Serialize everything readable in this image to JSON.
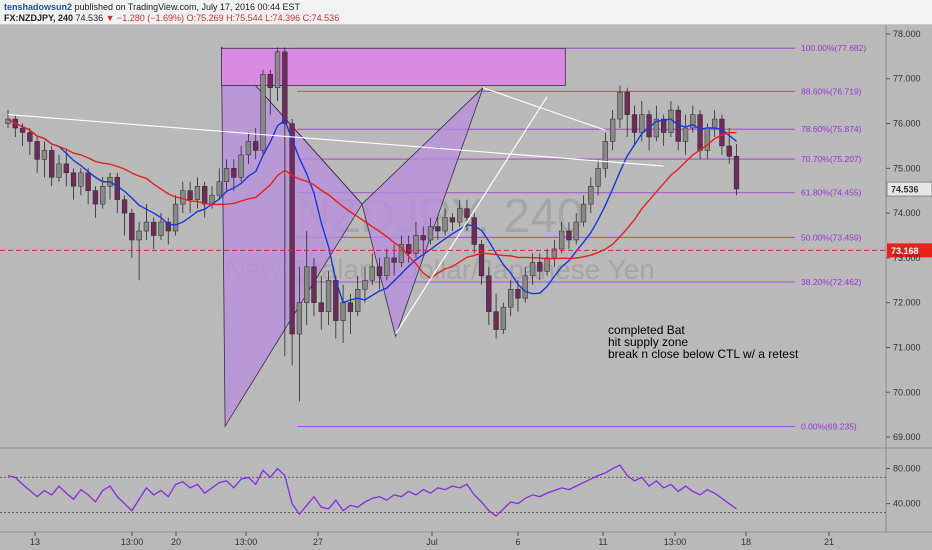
{
  "header": {
    "user": "tenshadowsun2",
    "published": "published on TradingView.com, July 17, 2016 00:44 EST",
    "symbol": "FX:NZDJPY, 240",
    "last": "74.536",
    "change": "▼ −1.280 (−1.69%)",
    "ohlc": "O:75.269  H:75.544  L:74.396  C:74.536"
  },
  "watermark": {
    "symbol": "NZDJPY, 240",
    "name": "New Zealand Dollar/Japanese Yen"
  },
  "colors": {
    "background": "#b9b9b9",
    "candle_up": "#888888",
    "candle_down": "#6e2b5a",
    "ma_fast": "#1a3ad8",
    "ma_slow": "#e8231c",
    "fib": "#9b35d8",
    "pattern_fill": "#b98ee0",
    "supply_zone": "#d78ae0",
    "trendline": "#ffffff",
    "rsi": "#8a2be2",
    "hline": "#e8231c"
  },
  "chart_data": [
    {
      "type": "candlestick",
      "title": "FX:NZDJPY, 240",
      "ylim": [
        68.8,
        78.2
      ],
      "y_ticks": [
        "78.000",
        "77.000",
        "76.000",
        "75.000",
        "74.000",
        "73.000",
        "72.000",
        "71.000",
        "70.000",
        "69.000"
      ],
      "x_tick_labels": [
        "13",
        "13:00",
        "20",
        "13:00",
        "27",
        "Jul",
        "6",
        "11",
        "13:00",
        "18",
        "21"
      ],
      "last_price": "74.536",
      "hline": {
        "value": 73.168,
        "label": "73.168",
        "style": "dashed"
      },
      "fib_levels": [
        {
          "label": "100.00%(77.682)",
          "value": 77.682
        },
        {
          "label": "88.60%(76.719)",
          "value": 76.719
        },
        {
          "label": "78.60%(75.874)",
          "value": 75.874
        },
        {
          "label": "70.70%(75.207)",
          "value": 75.207
        },
        {
          "label": "61.80%(74.455)",
          "value": 74.455
        },
        {
          "label": "50.00%(73.459)",
          "value": 73.459
        },
        {
          "label": "38.20%(72.462)",
          "value": 72.462
        },
        {
          "label": "0.00%(69.235)",
          "value": 69.235
        }
      ],
      "pattern": {
        "name": "Bat",
        "points": [
          {
            "t": 29.3,
            "price": 77.7
          },
          {
            "t": 29.8,
            "price": 69.24
          },
          {
            "t": 48.6,
            "price": 74.2
          },
          {
            "t": 53.2,
            "price": 71.25
          },
          {
            "t": 65.2,
            "price": 76.8
          }
        ]
      },
      "supply_zone": {
        "t0": 29.3,
        "t1": 76.5,
        "p0": 76.85,
        "p1": 77.68
      },
      "trendlines": [
        {
          "t0": 0,
          "p0": 76.2,
          "t1": 90,
          "p1": 75.05
        },
        {
          "t0": 65.2,
          "p0": 76.8,
          "t1": 82,
          "p1": 75.85
        },
        {
          "t0": 53.2,
          "p0": 71.3,
          "t1": 74,
          "p1": 76.6
        }
      ],
      "annotation": [
        "completed Bat",
        "hit supply zone",
        "break n close below CTL w/ a retest"
      ],
      "series": [
        {
          "name": "",
          "type": "ma",
          "period": 8
        },
        {
          "name": "",
          "type": "ma",
          "period": 20
        }
      ],
      "candles": [
        [
          76.0,
          76.1,
          76.3,
          75.9
        ],
        [
          76.1,
          75.9,
          76.2,
          75.7
        ],
        [
          75.9,
          75.8,
          76.0,
          75.5
        ],
        [
          75.8,
          75.6,
          75.9,
          75.3
        ],
        [
          75.6,
          75.2,
          75.7,
          74.9
        ],
        [
          75.2,
          75.4,
          75.6,
          74.8
        ],
        [
          75.4,
          74.8,
          75.5,
          74.6
        ],
        [
          74.8,
          75.1,
          75.3,
          74.7
        ],
        [
          75.1,
          74.9,
          75.4,
          74.6
        ],
        [
          74.9,
          74.6,
          75.0,
          74.3
        ],
        [
          74.6,
          74.9,
          75.0,
          74.4
        ],
        [
          74.9,
          74.5,
          75.0,
          74.2
        ],
        [
          74.5,
          74.2,
          74.6,
          73.9
        ],
        [
          74.2,
          74.6,
          74.8,
          74.1
        ],
        [
          74.6,
          74.8,
          74.9,
          74.3
        ],
        [
          74.8,
          74.3,
          74.9,
          74.0
        ],
        [
          74.3,
          74.0,
          74.4,
          73.5
        ],
        [
          74.0,
          73.4,
          74.1,
          73.0
        ],
        [
          73.4,
          73.6,
          73.8,
          72.5
        ],
        [
          73.6,
          73.8,
          74.2,
          73.4
        ],
        [
          73.8,
          73.5,
          73.9,
          73.2
        ],
        [
          73.5,
          73.8,
          74.0,
          73.4
        ],
        [
          73.8,
          73.6,
          73.9,
          73.3
        ],
        [
          73.6,
          74.2,
          74.4,
          73.5
        ],
        [
          74.2,
          74.5,
          74.7,
          74.0
        ],
        [
          74.5,
          74.3,
          74.7,
          74.0
        ],
        [
          74.3,
          74.6,
          74.8,
          74.1
        ],
        [
          74.6,
          74.2,
          74.7,
          73.9
        ],
        [
          74.2,
          74.4,
          74.6,
          74.1
        ],
        [
          74.4,
          74.7,
          75.0,
          74.3
        ],
        [
          74.7,
          75.0,
          75.2,
          74.5
        ],
        [
          75.0,
          74.8,
          75.2,
          74.5
        ],
        [
          74.8,
          75.3,
          75.5,
          74.7
        ],
        [
          75.3,
          75.6,
          75.8,
          75.1
        ],
        [
          75.6,
          75.4,
          75.9,
          75.2
        ],
        [
          75.4,
          77.1,
          77.2,
          75.3
        ],
        [
          77.1,
          76.8,
          77.2,
          76.2
        ],
        [
          76.8,
          77.6,
          77.7,
          76.5
        ],
        [
          77.6,
          76.0,
          77.7,
          70.8
        ],
        [
          76.0,
          71.3,
          76.1,
          70.6
        ],
        [
          71.3,
          72.0,
          72.8,
          69.8
        ],
        [
          72.0,
          72.8,
          73.6,
          71.5
        ],
        [
          72.8,
          72.0,
          73.0,
          71.7
        ],
        [
          72.0,
          71.8,
          72.6,
          71.4
        ],
        [
          71.8,
          72.5,
          72.7,
          71.5
        ],
        [
          72.5,
          71.6,
          72.6,
          71.2
        ],
        [
          71.6,
          72.0,
          72.4,
          71.1
        ],
        [
          72.0,
          71.8,
          72.2,
          71.3
        ],
        [
          71.8,
          72.3,
          72.6,
          71.7
        ],
        [
          72.3,
          72.5,
          72.8,
          72.0
        ],
        [
          72.5,
          72.8,
          73.1,
          72.4
        ],
        [
          72.8,
          72.6,
          73.0,
          72.3
        ],
        [
          72.6,
          73.0,
          73.2,
          72.5
        ],
        [
          73.0,
          72.9,
          73.3,
          72.6
        ],
        [
          72.9,
          73.3,
          73.5,
          72.8
        ],
        [
          73.3,
          73.1,
          73.5,
          72.9
        ],
        [
          73.1,
          73.5,
          73.8,
          73.0
        ],
        [
          73.5,
          73.4,
          73.7,
          73.1
        ],
        [
          73.4,
          73.7,
          73.9,
          73.3
        ],
        [
          73.7,
          73.6,
          73.9,
          73.4
        ],
        [
          73.6,
          73.9,
          74.1,
          73.5
        ],
        [
          73.9,
          73.8,
          74.0,
          73.6
        ],
        [
          73.8,
          74.1,
          74.3,
          73.7
        ],
        [
          74.1,
          73.9,
          74.3,
          73.6
        ],
        [
          73.9,
          73.3,
          74.0,
          73.1
        ],
        [
          73.3,
          72.6,
          73.4,
          72.4
        ],
        [
          72.6,
          71.8,
          72.8,
          71.5
        ],
        [
          71.8,
          71.4,
          72.2,
          71.2
        ],
        [
          71.4,
          71.9,
          72.0,
          71.3
        ],
        [
          71.9,
          72.3,
          72.5,
          71.7
        ],
        [
          72.3,
          72.1,
          72.5,
          71.8
        ],
        [
          72.1,
          72.6,
          72.8,
          72.0
        ],
        [
          72.6,
          72.9,
          73.1,
          72.4
        ],
        [
          72.9,
          72.7,
          73.1,
          72.5
        ],
        [
          72.7,
          73.0,
          73.2,
          72.6
        ],
        [
          73.0,
          73.2,
          73.4,
          72.8
        ],
        [
          73.2,
          73.6,
          73.8,
          73.1
        ],
        [
          73.6,
          73.4,
          73.8,
          73.2
        ],
        [
          73.4,
          73.8,
          74.0,
          73.3
        ],
        [
          73.8,
          74.2,
          74.4,
          73.7
        ],
        [
          74.2,
          74.6,
          74.8,
          74.0
        ],
        [
          74.6,
          75.0,
          75.2,
          74.4
        ],
        [
          75.0,
          75.6,
          75.8,
          74.8
        ],
        [
          75.6,
          76.1,
          76.3,
          75.4
        ],
        [
          76.1,
          76.7,
          76.85,
          75.9
        ],
        [
          76.7,
          76.2,
          76.8,
          75.7
        ],
        [
          76.2,
          75.8,
          76.4,
          75.5
        ],
        [
          75.8,
          76.2,
          76.5,
          75.6
        ],
        [
          76.2,
          75.7,
          76.3,
          75.4
        ],
        [
          75.7,
          76.1,
          76.4,
          75.6
        ],
        [
          76.1,
          75.8,
          76.2,
          75.5
        ],
        [
          75.8,
          76.3,
          76.5,
          75.7
        ],
        [
          76.3,
          75.6,
          76.4,
          75.4
        ],
        [
          75.6,
          75.9,
          76.2,
          75.3
        ],
        [
          75.9,
          76.2,
          76.4,
          75.8
        ],
        [
          76.2,
          75.4,
          76.3,
          75.2
        ],
        [
          75.4,
          75.9,
          76.0,
          75.2
        ],
        [
          75.9,
          76.1,
          76.3,
          75.7
        ],
        [
          76.1,
          75.5,
          76.2,
          75.3
        ],
        [
          75.5,
          75.27,
          75.9,
          75.1
        ],
        [
          75.27,
          74.54,
          75.54,
          74.4
        ]
      ]
    },
    {
      "type": "line",
      "title": "",
      "ylim": [
        10,
        100
      ],
      "y_ticks": [
        "80.000",
        "40.000"
      ],
      "guide_levels": [
        70,
        30
      ],
      "series": [
        {
          "name": "",
          "values": [
            72,
            70,
            62,
            55,
            48,
            55,
            50,
            60,
            52,
            45,
            56,
            50,
            42,
            55,
            60,
            48,
            40,
            32,
            45,
            58,
            50,
            55,
            48,
            62,
            65,
            58,
            62,
            52,
            58,
            64,
            66,
            58,
            68,
            70,
            62,
            78,
            70,
            80,
            72,
            40,
            28,
            38,
            48,
            36,
            34,
            44,
            32,
            38,
            36,
            42,
            46,
            48,
            44,
            50,
            48,
            54,
            50,
            56,
            52,
            58,
            56,
            60,
            58,
            62,
            50,
            42,
            32,
            26,
            34,
            42,
            40,
            46,
            50,
            48,
            52,
            55,
            58,
            56,
            60,
            64,
            68,
            72,
            75,
            80,
            84,
            72,
            66,
            70,
            60,
            66,
            58,
            62,
            54,
            60,
            54,
            50,
            56,
            52,
            46,
            40,
            34
          ]
        }
      ]
    }
  ]
}
